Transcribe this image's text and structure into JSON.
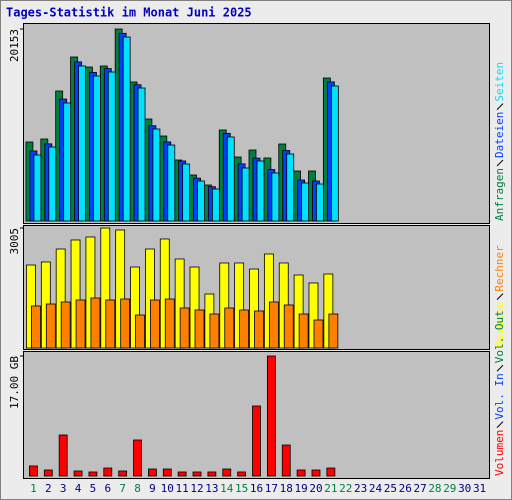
{
  "chart_data": [
    {
      "type": "bar",
      "title": "Tages-Statistik im Monat Juni 2025",
      "categories": [
        "1",
        "2",
        "3",
        "4",
        "5",
        "6",
        "7",
        "8",
        "9",
        "10",
        "11",
        "12",
        "13",
        "14",
        "15",
        "16",
        "17",
        "18",
        "19",
        "20",
        "21",
        "22",
        "23",
        "24",
        "25",
        "26",
        "27",
        "28",
        "29",
        "30",
        "31"
      ],
      "ylim": [
        0,
        20153
      ],
      "yticks": [
        20153
      ],
      "series": [
        {
          "name": "Anfragen",
          "color": "#008040",
          "values": [
            8292,
            8607,
            13645,
            17214,
            16164,
            16269,
            20153,
            14590,
            10706,
            8922,
            6403,
            4828,
            3779,
            9552,
            6718,
            7452,
            6613,
            8082,
            5248,
            5248,
            15010,
            null,
            null,
            null,
            null,
            null,
            null,
            null,
            null,
            null,
            null
          ]
        },
        {
          "name": "Dateien",
          "color": "#0040ff",
          "values": [
            7350,
            8100,
            12800,
            16700,
            15600,
            16000,
            19700,
            14300,
            10000,
            8300,
            6300,
            4500,
            3600,
            9200,
            6000,
            6600,
            5400,
            7400,
            4300,
            4200,
            14600,
            null,
            null,
            null,
            null,
            null,
            null,
            null,
            null,
            null,
            null
          ]
        },
        {
          "name": "Seiten",
          "color": "#00e0ff",
          "values": [
            6928,
            7767,
            12386,
            16269,
            15220,
            15640,
            19313,
            13960,
            9657,
            7977,
            5983,
            4199,
            3359,
            8817,
            5563,
            6298,
            5038,
            7033,
            3989,
            3884,
            14170,
            null,
            null,
            null,
            null,
            null,
            null,
            null,
            null,
            null,
            null
          ]
        }
      ]
    },
    {
      "type": "bar",
      "categories": [
        "1",
        "2",
        "3",
        "4",
        "5",
        "6",
        "7",
        "8",
        "9",
        "10",
        "11",
        "12",
        "13",
        "14",
        "15",
        "16",
        "17",
        "18",
        "19",
        "20",
        "21",
        "22",
        "23",
        "24",
        "25",
        "26",
        "27",
        "28",
        "29",
        "30",
        "31"
      ],
      "ylim": [
        0,
        3005
      ],
      "yticks": [
        3005
      ],
      "series": [
        {
          "name": "Besuche",
          "color": "#ffff00",
          "values": [
            2078,
            2154,
            2479,
            2705,
            2780,
            3005,
            2955,
            2028,
            2479,
            2730,
            2229,
            2028,
            1352,
            2129,
            2129,
            1978,
            2354,
            2129,
            1828,
            1628,
            1853,
            null,
            null,
            null,
            null,
            null,
            null,
            null,
            null,
            null,
            null
          ]
        },
        {
          "name": "Rechner",
          "color": "#ff8000",
          "values": [
            1052,
            1102,
            1152,
            1202,
            1252,
            1202,
            1227,
            826,
            1202,
            1227,
            1002,
            952,
            851,
            1002,
            952,
            927,
            1152,
            1077,
            851,
            701,
            851,
            null,
            null,
            null,
            null,
            null,
            null,
            null,
            null,
            null,
            null
          ]
        }
      ]
    },
    {
      "type": "bar",
      "categories": [
        "1",
        "2",
        "3",
        "4",
        "5",
        "6",
        "7",
        "8",
        "9",
        "10",
        "11",
        "12",
        "13",
        "14",
        "15",
        "16",
        "17",
        "18",
        "19",
        "20",
        "21",
        "22",
        "23",
        "24",
        "25",
        "26",
        "27",
        "28",
        "29",
        "30",
        "31"
      ],
      "category_colors": [
        "#008040",
        "#000080",
        "#000080",
        "#000080",
        "#000080",
        "#000080",
        "#008040",
        "#008040",
        "#000080",
        "#000080",
        "#000080",
        "#000080",
        "#000080",
        "#008040",
        "#008040",
        "#000080",
        "#000080",
        "#000080",
        "#000080",
        "#000080",
        "#008040",
        "#008040",
        "#000080",
        "#000080",
        "#000080",
        "#000080",
        "#000080",
        "#008040",
        "#008040",
        "#000080",
        "#000080"
      ],
      "ylim": [
        0,
        17
      ],
      "yticks": [
        {
          "value": 17,
          "label": "17.00 GB"
        }
      ],
      "series": [
        {
          "name": "Volumen",
          "color": "#ff0000",
          "values": [
            1.42,
            0.85,
            5.81,
            0.71,
            0.57,
            1.13,
            0.71,
            5.1,
            0.99,
            0.99,
            0.57,
            0.57,
            0.57,
            0.99,
            0.57,
            9.92,
            17.0,
            4.39,
            0.85,
            0.85,
            1.13,
            null,
            null,
            null,
            null,
            null,
            null,
            null,
            null,
            null,
            null
          ]
        },
        {
          "name": "Vol. In",
          "color": "#0040ff",
          "values": [
            null,
            null,
            null,
            null,
            null,
            null,
            null,
            null,
            null,
            null,
            null,
            null,
            null,
            null,
            null,
            null,
            null,
            null,
            null,
            null,
            null,
            null,
            null,
            null,
            null,
            null,
            null,
            null,
            null,
            null,
            null
          ]
        },
        {
          "name": "Vol. Out",
          "color": "#008040",
          "values": [
            null,
            null,
            null,
            null,
            null,
            null,
            null,
            null,
            null,
            null,
            null,
            null,
            null,
            null,
            null,
            null,
            null,
            null,
            null,
            null,
            null,
            null,
            null,
            null,
            null,
            null,
            null,
            null,
            null,
            null,
            null
          ]
        }
      ]
    }
  ]
}
